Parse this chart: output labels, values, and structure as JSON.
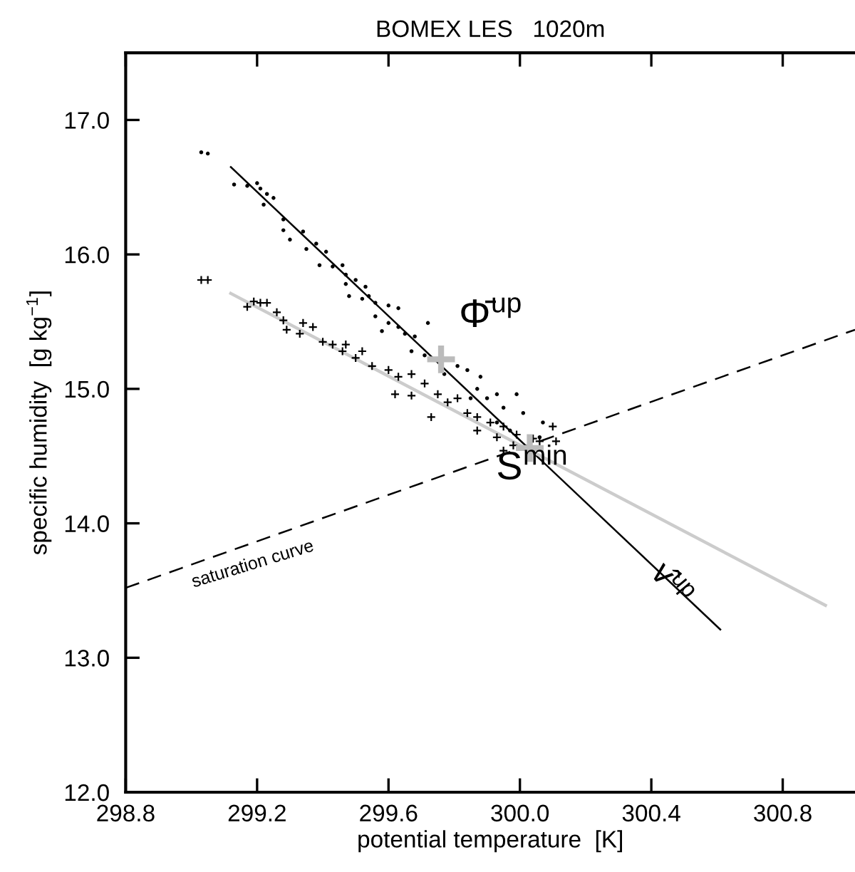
{
  "chart_data": {
    "type": "scatter",
    "title": "BOMEX LES   1020m",
    "xlabel": "potential temperature  [K]",
    "ylabel": "specific humidity  [g kg$^{−1}$]",
    "xlim": [
      298.8,
      301.02
    ],
    "ylim": [
      12.0,
      17.5
    ],
    "xticks": [
      298.8,
      299.2,
      299.6,
      {
        "value": 300,
        "label": "300.0"
      },
      300.4,
      300.8
    ],
    "yticks": [
      {
        "value": 12,
        "label": "12.0"
      },
      {
        "value": 13,
        "label": "13.0"
      },
      {
        "value": 14,
        "label": "14.0"
      },
      {
        "value": 15,
        "label": "15.0"
      },
      {
        "value": 16,
        "label": "16.0"
      },
      {
        "value": 17,
        "label": "17.0"
      }
    ],
    "grid": false,
    "legend": false,
    "tick_labels": "xy",
    "series": [
      {
        "marker": "circle",
        "color": "#000000",
        "x": [
          299.03,
          299.05,
          299.13,
          299.17,
          299.2,
          299.21,
          299.23,
          299.25,
          299.22,
          299.28,
          299.28,
          299.3,
          299.34,
          299.35,
          299.38,
          299.41,
          299.39,
          299.43,
          299.46,
          299.47,
          299.47,
          299.5,
          299.53,
          299.48,
          299.52,
          299.54,
          299.56,
          299.6,
          299.63,
          299.56,
          299.6,
          299.63,
          299.58,
          299.65,
          299.68,
          299.72,
          299.67,
          299.71,
          299.81,
          299.84,
          299.88,
          299.77,
          299.87,
          299.93,
          299.99,
          299.95,
          300.01,
          299.9,
          299.93,
          300.07,
          300.06,
          299.97,
          299.85
        ],
        "values": [
          16.76,
          16.75,
          16.52,
          16.51,
          16.53,
          16.49,
          16.45,
          16.42,
          16.37,
          16.26,
          16.18,
          16.11,
          16.17,
          16.04,
          16.08,
          16.02,
          15.92,
          15.91,
          15.92,
          15.85,
          15.78,
          15.81,
          15.76,
          15.69,
          15.67,
          15.69,
          15.64,
          15.62,
          15.6,
          15.54,
          15.49,
          15.46,
          15.43,
          15.41,
          15.39,
          15.49,
          15.28,
          15.25,
          15.17,
          15.14,
          15.09,
          15.11,
          15.0,
          14.96,
          14.96,
          14.86,
          14.82,
          14.93,
          14.75,
          14.75,
          14.64,
          14.69,
          14.93
        ]
      },
      {
        "marker": "cross",
        "color": "#000000",
        "x": [
          299.03,
          299.05,
          299.19,
          299.21,
          299.23,
          299.17,
          299.26,
          299.28,
          299.34,
          299.37,
          299.29,
          299.33,
          299.4,
          299.43,
          299.47,
          299.46,
          299.52,
          299.5,
          299.55,
          299.6,
          299.63,
          299.67,
          299.71,
          299.62,
          299.67,
          299.75,
          299.78,
          299.81,
          299.73,
          299.84,
          299.87,
          299.91,
          299.95,
          299.99,
          300.04,
          299.93,
          299.98,
          299.87,
          300.1,
          300.11,
          300.06,
          299.95
        ],
        "values": [
          15.81,
          15.81,
          15.65,
          15.64,
          15.64,
          15.61,
          15.57,
          15.51,
          15.49,
          15.46,
          15.44,
          15.41,
          15.35,
          15.33,
          15.33,
          15.28,
          15.28,
          15.23,
          15.17,
          15.14,
          15.09,
          15.11,
          15.04,
          14.96,
          14.95,
          14.96,
          14.9,
          14.93,
          14.79,
          14.82,
          14.79,
          14.75,
          14.72,
          14.66,
          14.63,
          14.64,
          14.58,
          14.69,
          14.72,
          14.61,
          14.61,
          14.54
        ]
      },
      {
        "type": "line",
        "color": "#000000",
        "line_style": "solid",
        "x": [
          299.12,
          300.61
        ],
        "values": [
          16.65,
          13.21
        ]
      },
      {
        "type": "line",
        "color": "#cccccc",
        "line_style": "solid",
        "x": [
          299.12,
          300.93
        ],
        "values": [
          15.71,
          13.39
        ]
      },
      {
        "type": "line",
        "color": "#000000",
        "line_style": "dashed",
        "x": [
          298.8,
          301.02
        ],
        "values": [
          13.52,
          15.44
        ]
      },
      {
        "marker": "cross",
        "color": "#bbbbbb",
        "x": [
          299.76,
          300.03
        ],
        "values": [
          15.22,
          14.56
        ]
      }
    ],
    "annotations": [
      "Φ̄$^{up}$",
      "S$^{min}$",
      "v̂$^{up}$",
      "saturation curve"
    ]
  }
}
